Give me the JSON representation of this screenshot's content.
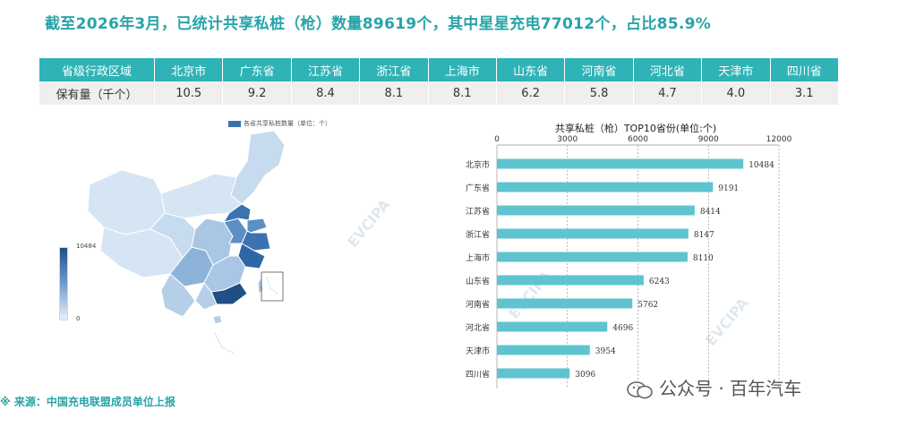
{
  "headline": "截至2026年3月，已统计共享私桩（枪）数量89619个，其中星星充电77012个，占比85.9%",
  "table": {
    "header_label": "省级行政区域",
    "row_label": "保有量（千个）",
    "provinces": [
      "北京市",
      "广东省",
      "江苏省",
      "浙江省",
      "上海市",
      "山东省",
      "河南省",
      "河北省",
      "天津市",
      "四川省"
    ],
    "values": [
      "10.5",
      "9.2",
      "8.4",
      "8.1",
      "8.1",
      "6.2",
      "5.8",
      "4.7",
      "4.0",
      "3.1"
    ]
  },
  "map": {
    "legend_label": "各省共享私桩数量（单位：个）",
    "scale_max": "10484",
    "scale_min": "0",
    "colors": {
      "dark": "#1f4f86",
      "mid": "#5b8fc6",
      "light": "#a9c6e4",
      "pale": "#d6e5f3"
    }
  },
  "watermark": "EVCIPA",
  "footer": "※  来源：中国充电联盟成员单位上报",
  "wechat": "公众号 · 百年汽车",
  "chart_data": {
    "type": "bar",
    "orientation": "horizontal",
    "title": "共享私桩（枪）TOP10省份(单位:个)",
    "categories": [
      "北京市",
      "广东省",
      "江苏省",
      "浙江省",
      "上海市",
      "山东省",
      "河南省",
      "河北省",
      "天津市",
      "四川省"
    ],
    "values": [
      10484,
      9191,
      8414,
      8147,
      8110,
      6243,
      5762,
      4696,
      3954,
      3096
    ],
    "xlim": [
      0,
      12000
    ],
    "xticks": [
      0,
      3000,
      6000,
      9000,
      12000
    ],
    "axis_position": "top",
    "grid": true,
    "bar_color": "#5fc4cf",
    "data_labels": true
  }
}
